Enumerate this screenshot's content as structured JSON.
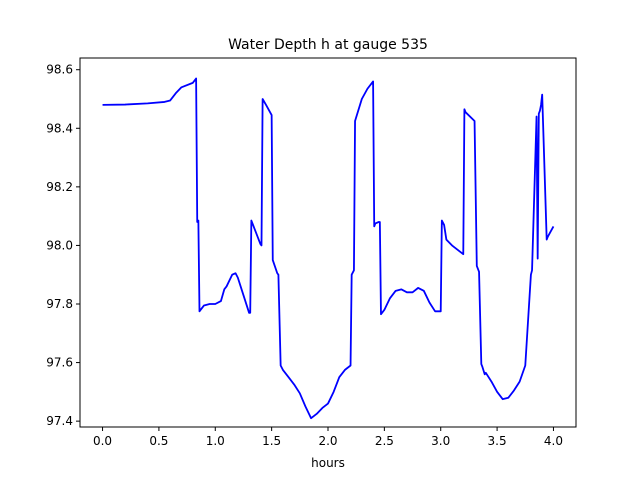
{
  "chart_data": {
    "type": "line",
    "title": "Water Depth h at gauge 535",
    "xlabel": "hours",
    "ylabel": "",
    "xlim": [
      -0.2,
      4.2
    ],
    "ylim": [
      97.38,
      98.64
    ],
    "xticks": [
      0.0,
      0.5,
      1.0,
      1.5,
      2.0,
      2.5,
      3.0,
      3.5,
      4.0
    ],
    "xtick_labels": [
      "0.0",
      "0.5",
      "1.0",
      "1.5",
      "2.0",
      "2.5",
      "3.0",
      "3.5",
      "4.0"
    ],
    "yticks": [
      97.4,
      97.6,
      97.8,
      98.0,
      98.2,
      98.4,
      98.6
    ],
    "ytick_labels": [
      "97.4",
      "97.6",
      "97.8",
      "98.0",
      "98.2",
      "98.4",
      "98.6"
    ],
    "grid": false,
    "series": [
      {
        "color": "#0000ff",
        "x": [
          0.0,
          0.2,
          0.4,
          0.55,
          0.6,
          0.65,
          0.7,
          0.8,
          0.83,
          0.84,
          0.85,
          0.86,
          0.87,
          0.9,
          0.95,
          1.0,
          1.05,
          1.08,
          1.1,
          1.15,
          1.18,
          1.2,
          1.25,
          1.3,
          1.31,
          1.32,
          1.33,
          1.35,
          1.4,
          1.41,
          1.42,
          1.45,
          1.5,
          1.51,
          1.55,
          1.56,
          1.58,
          1.6,
          1.65,
          1.7,
          1.75,
          1.8,
          1.85,
          1.9,
          1.95,
          2.0,
          2.05,
          2.1,
          2.15,
          2.2,
          2.21,
          2.23,
          2.24,
          2.3,
          2.35,
          2.4,
          2.41,
          2.42,
          2.45,
          2.46,
          2.47,
          2.5,
          2.55,
          2.6,
          2.65,
          2.7,
          2.75,
          2.8,
          2.85,
          2.9,
          2.95,
          3.0,
          3.01,
          3.03,
          3.05,
          3.1,
          3.2,
          3.21,
          3.22,
          3.3,
          3.32,
          3.34,
          3.36,
          3.37,
          3.39,
          3.4,
          3.45,
          3.5,
          3.55,
          3.6,
          3.65,
          3.7,
          3.75,
          3.8,
          3.81,
          3.85,
          3.86,
          3.87,
          3.88,
          3.89,
          3.9,
          3.94,
          3.95,
          4.0
        ],
        "y": [
          98.48,
          98.481,
          98.485,
          98.49,
          98.495,
          98.52,
          98.54,
          98.555,
          98.57,
          98.08,
          98.085,
          97.775,
          97.78,
          97.795,
          97.8,
          97.8,
          97.81,
          97.85,
          97.86,
          97.9,
          97.905,
          97.89,
          97.83,
          97.77,
          97.77,
          98.085,
          98.075,
          98.055,
          98.005,
          98.0,
          98.5,
          98.48,
          98.445,
          97.95,
          97.905,
          97.9,
          97.59,
          97.575,
          97.55,
          97.525,
          97.495,
          97.45,
          97.41,
          97.425,
          97.445,
          97.46,
          97.5,
          97.55,
          97.575,
          97.59,
          97.9,
          97.915,
          98.425,
          98.5,
          98.535,
          98.56,
          98.065,
          98.075,
          98.08,
          98.08,
          97.765,
          97.78,
          97.82,
          97.845,
          97.85,
          97.84,
          97.84,
          97.855,
          97.845,
          97.805,
          97.775,
          97.775,
          98.085,
          98.07,
          98.02,
          98.0,
          97.97,
          98.465,
          98.455,
          98.425,
          97.93,
          97.91,
          97.595,
          97.585,
          97.56,
          97.565,
          97.535,
          97.5,
          97.475,
          97.48,
          97.505,
          97.535,
          97.59,
          97.9,
          97.915,
          98.44,
          97.955,
          98.45,
          98.46,
          98.48,
          98.515,
          98.02,
          98.03,
          98.065
        ]
      }
    ]
  }
}
